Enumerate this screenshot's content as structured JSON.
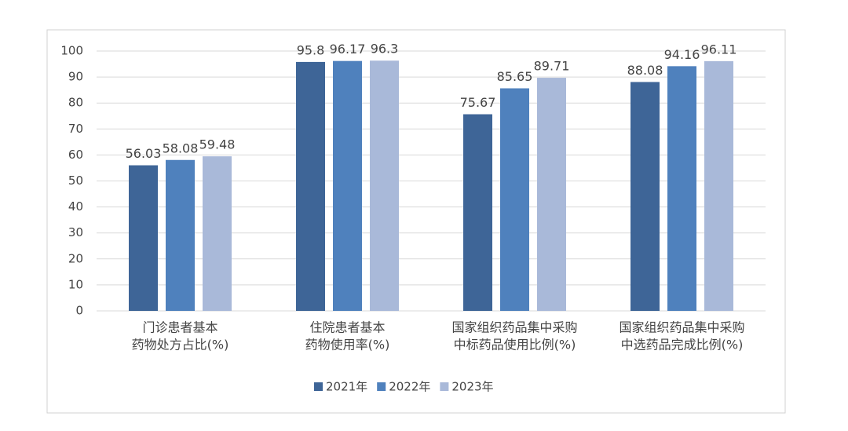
{
  "chart_data": {
    "type": "bar",
    "categories": [
      [
        "门诊患者基本",
        "药物处方占比(%)"
      ],
      [
        "住院患者基本",
        "药物使用率(%)"
      ],
      [
        "国家组织药品集中采购",
        "中标药品使用比例(%)"
      ],
      [
        "国家组织药品集中采购",
        "中选药品完成比例(%)"
      ]
    ],
    "series": [
      {
        "name": "2021年",
        "color": "#3e6597",
        "values": [
          56.03,
          95.8,
          75.67,
          88.08
        ]
      },
      {
        "name": "2022年",
        "color": "#4f81bd",
        "values": [
          58.08,
          96.17,
          85.65,
          94.16
        ]
      },
      {
        "name": "2023年",
        "color": "#a9b9d9",
        "values": [
          59.48,
          96.3,
          89.71,
          96.11
        ]
      }
    ],
    "ylim": [
      0,
      100
    ],
    "yticks": [
      0,
      10,
      20,
      30,
      40,
      50,
      60,
      70,
      80,
      90,
      100
    ],
    "grid": true,
    "legend": "bottom"
  }
}
